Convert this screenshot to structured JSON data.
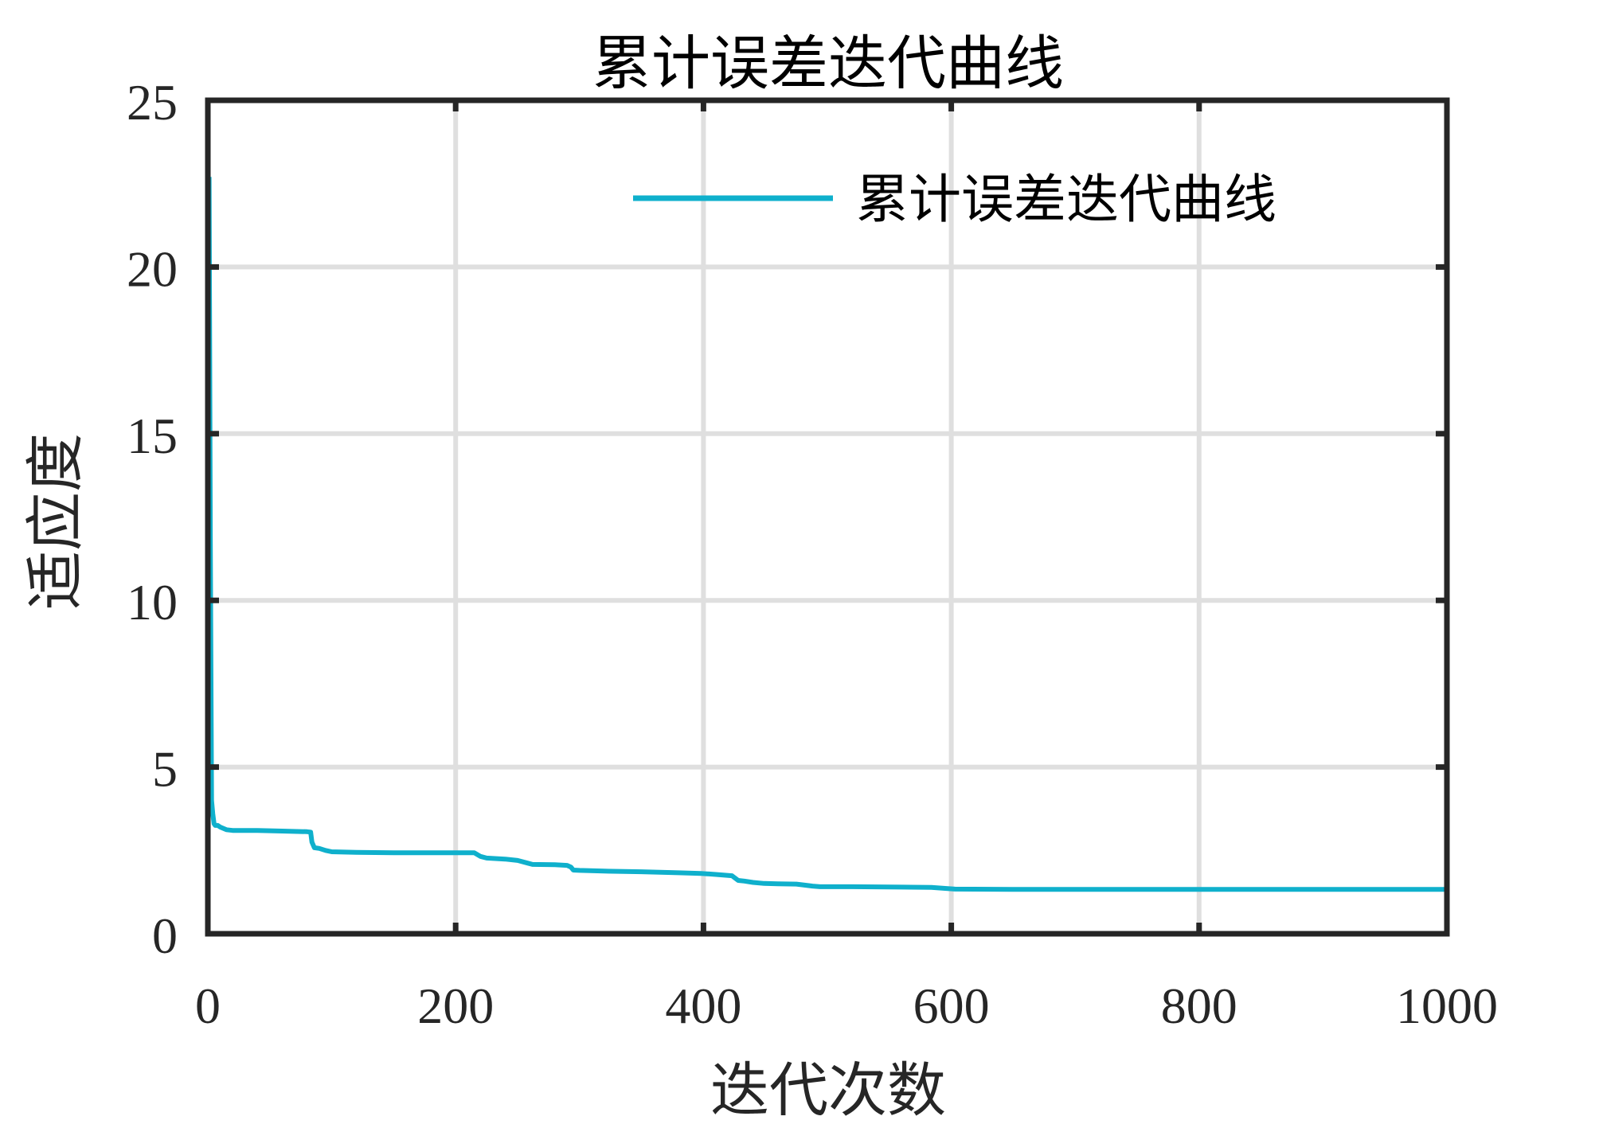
{
  "chart_data": {
    "type": "line",
    "title": "累计误差迭代曲线",
    "xlabel": "迭代次数",
    "ylabel": "适应度",
    "xlim": [
      0,
      1000
    ],
    "ylim": [
      0,
      25
    ],
    "xticks": [
      0,
      200,
      400,
      600,
      800,
      1000
    ],
    "yticks": [
      0,
      5,
      10,
      15,
      20,
      25
    ],
    "xtick_labels": [
      "0",
      "200",
      "400",
      "600",
      "800",
      "1000"
    ],
    "ytick_labels": [
      "0",
      "5",
      "10",
      "15",
      "20",
      "25"
    ],
    "grid": true,
    "legend_position": "upper right (inside, no box)",
    "series": [
      {
        "name": "累计误差迭代曲线",
        "color": "#0fb0cc",
        "x": [
          1,
          2,
          3,
          4,
          5,
          6,
          8,
          10,
          15,
          20,
          40,
          60,
          80,
          83,
          84,
          86,
          90,
          95,
          100,
          120,
          150,
          180,
          200,
          215,
          220,
          225,
          240,
          250,
          258,
          262,
          280,
          290,
          293,
          295,
          300,
          320,
          350,
          380,
          398,
          410,
          423,
          428,
          433,
          440,
          449,
          460,
          475,
          488,
          494,
          520,
          560,
          584,
          595,
          603,
          650,
          700,
          800,
          900,
          1000
        ],
        "y": [
          22.7,
          12.0,
          4.0,
          3.6,
          3.3,
          3.25,
          3.25,
          3.2,
          3.12,
          3.1,
          3.1,
          3.08,
          3.06,
          3.05,
          2.75,
          2.58,
          2.56,
          2.5,
          2.46,
          2.44,
          2.43,
          2.43,
          2.43,
          2.43,
          2.32,
          2.27,
          2.24,
          2.2,
          2.12,
          2.08,
          2.07,
          2.05,
          2.0,
          1.91,
          1.9,
          1.88,
          1.86,
          1.83,
          1.81,
          1.78,
          1.74,
          1.6,
          1.58,
          1.54,
          1.51,
          1.5,
          1.49,
          1.43,
          1.41,
          1.41,
          1.4,
          1.39,
          1.36,
          1.34,
          1.33,
          1.33,
          1.33,
          1.33,
          1.33
        ]
      }
    ]
  },
  "colors": {
    "line": "#0fb0cc",
    "axis": "#262626",
    "grid": "#dfdfdf",
    "background": "#ffffff"
  }
}
